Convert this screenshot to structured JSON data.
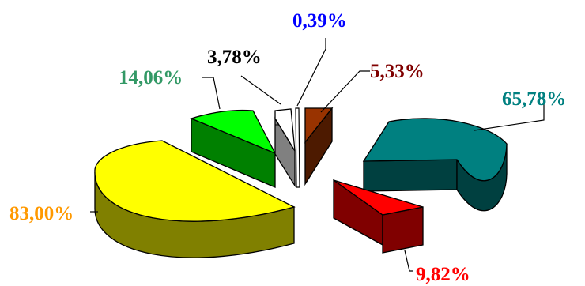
{
  "chart_data": {
    "type": "pie",
    "style": "3d-exploded",
    "title": "",
    "slices": [
      {
        "label": "65,78%",
        "color": "#008080",
        "side_color": "#004040",
        "label_color": "#008080"
      },
      {
        "label": "9,82%",
        "color": "#ff0000",
        "side_color": "#800000",
        "label_color": "#ff0000"
      },
      {
        "label": "83,00%",
        "color": "#ffff00",
        "side_color": "#808000",
        "label_color": "#ff9900"
      },
      {
        "label": "14,06%",
        "color": "#00ff00",
        "side_color": "#008000",
        "label_color": "#339966"
      },
      {
        "label": "3,78%",
        "color": "#ffffff",
        "side_color": "#808080",
        "label_color": "#000000"
      },
      {
        "label": "0,39%",
        "color": "#ffffff",
        "side_color": "#c0c0c0",
        "label_color": "#0000ff"
      },
      {
        "label": "5,33%",
        "color": "#993300",
        "side_color": "#4d1a00",
        "label_color": "#800000"
      }
    ],
    "grid": false,
    "legend": "none"
  }
}
